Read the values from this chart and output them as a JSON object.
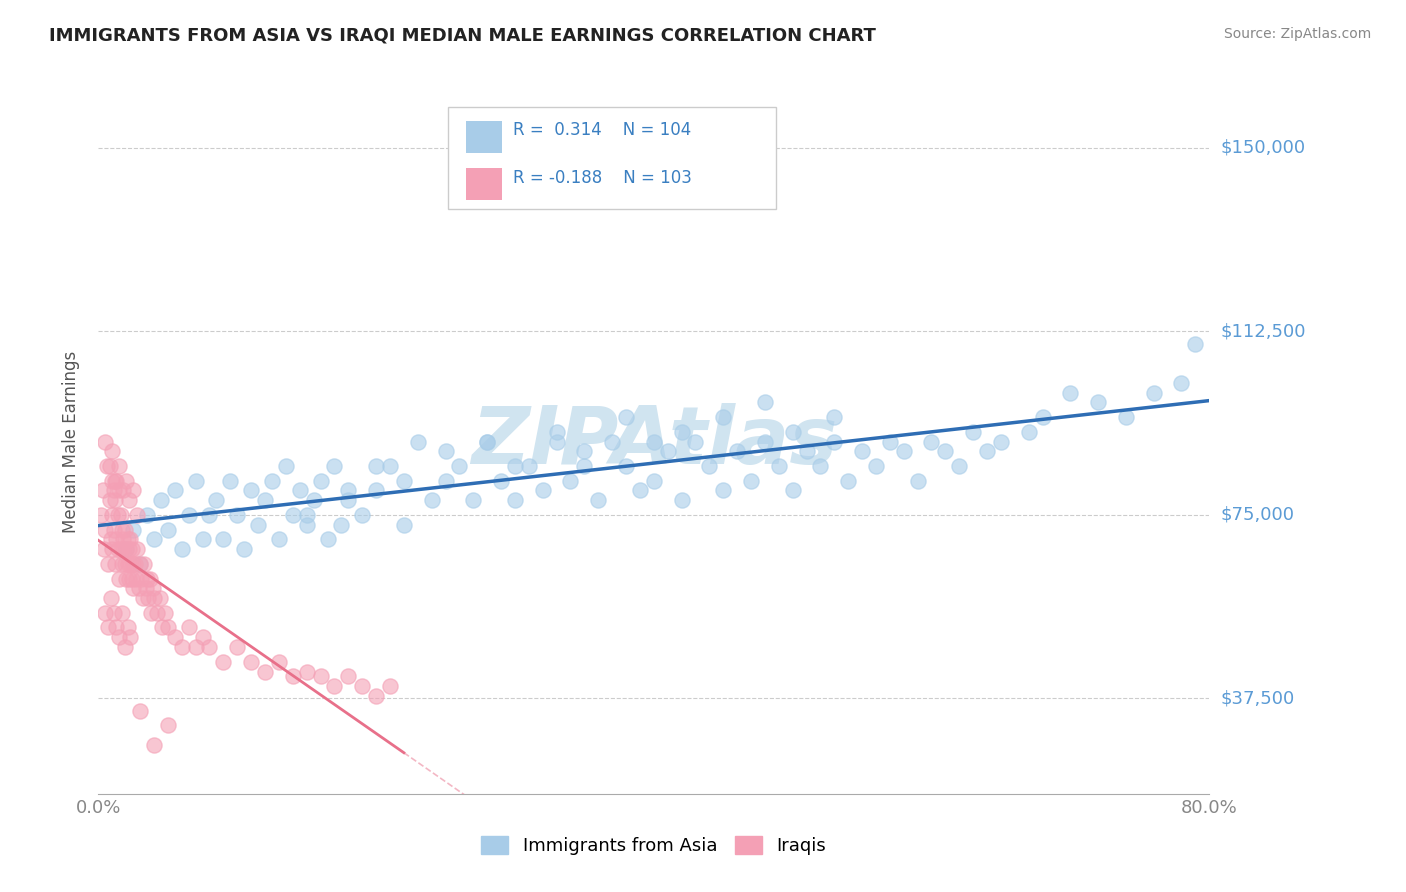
{
  "title": "IMMIGRANTS FROM ASIA VS IRAQI MEDIAN MALE EARNINGS CORRELATION CHART",
  "source": "Source: ZipAtlas.com",
  "ylabel": "Median Male Earnings",
  "xlim": [
    0.0,
    0.8
  ],
  "ylim": [
    18000,
    162000
  ],
  "yticks": [
    37500,
    75000,
    112500,
    150000
  ],
  "ytick_labels": [
    "$37,500",
    "$75,000",
    "$112,500",
    "$150,000"
  ],
  "xticks": [
    0.0,
    0.8
  ],
  "xtick_labels": [
    "0.0%",
    "80.0%"
  ],
  "r_asia": 0.314,
  "n_asia": 104,
  "r_iraq": -0.188,
  "n_iraq": 103,
  "color_asia": "#a8cce8",
  "color_iraq": "#f4a0b5",
  "color_line_asia": "#2e6db4",
  "color_line_iraq": "#e8708a",
  "watermark": "ZIPAtlas",
  "watermark_color": "#d0e4f0",
  "legend_r_color": "#3a7fc1",
  "legend_text_color": "#333333",
  "asia_x": [
    0.02,
    0.025,
    0.03,
    0.035,
    0.04,
    0.045,
    0.05,
    0.055,
    0.06,
    0.065,
    0.07,
    0.075,
    0.08,
    0.085,
    0.09,
    0.095,
    0.1,
    0.105,
    0.11,
    0.115,
    0.12,
    0.125,
    0.13,
    0.135,
    0.14,
    0.145,
    0.15,
    0.155,
    0.16,
    0.165,
    0.17,
    0.175,
    0.18,
    0.19,
    0.2,
    0.21,
    0.22,
    0.23,
    0.24,
    0.25,
    0.26,
    0.27,
    0.28,
    0.29,
    0.3,
    0.31,
    0.32,
    0.33,
    0.34,
    0.35,
    0.36,
    0.37,
    0.38,
    0.39,
    0.4,
    0.41,
    0.42,
    0.43,
    0.44,
    0.45,
    0.46,
    0.47,
    0.48,
    0.49,
    0.5,
    0.51,
    0.52,
    0.53,
    0.54,
    0.55,
    0.56,
    0.57,
    0.58,
    0.59,
    0.6,
    0.61,
    0.62,
    0.63,
    0.64,
    0.65,
    0.67,
    0.68,
    0.7,
    0.72,
    0.74,
    0.76,
    0.78,
    0.79,
    0.15,
    0.18,
    0.2,
    0.22,
    0.25,
    0.28,
    0.3,
    0.33,
    0.35,
    0.38,
    0.4,
    0.42,
    0.45,
    0.48,
    0.5,
    0.53
  ],
  "asia_y": [
    68000,
    72000,
    65000,
    75000,
    70000,
    78000,
    72000,
    80000,
    68000,
    75000,
    82000,
    70000,
    75000,
    78000,
    70000,
    82000,
    75000,
    68000,
    80000,
    73000,
    78000,
    82000,
    70000,
    85000,
    75000,
    80000,
    73000,
    78000,
    82000,
    70000,
    85000,
    73000,
    78000,
    75000,
    80000,
    85000,
    73000,
    90000,
    78000,
    82000,
    85000,
    78000,
    90000,
    82000,
    78000,
    85000,
    80000,
    90000,
    82000,
    85000,
    78000,
    90000,
    85000,
    80000,
    82000,
    88000,
    78000,
    90000,
    85000,
    80000,
    88000,
    82000,
    90000,
    85000,
    80000,
    88000,
    85000,
    90000,
    82000,
    88000,
    85000,
    90000,
    88000,
    82000,
    90000,
    88000,
    85000,
    92000,
    88000,
    90000,
    92000,
    95000,
    100000,
    98000,
    95000,
    100000,
    102000,
    110000,
    75000,
    80000,
    85000,
    82000,
    88000,
    90000,
    85000,
    92000,
    88000,
    95000,
    90000,
    92000,
    95000,
    98000,
    92000,
    95000
  ],
  "iraq_x": [
    0.002,
    0.003,
    0.004,
    0.005,
    0.006,
    0.007,
    0.008,
    0.009,
    0.01,
    0.01,
    0.01,
    0.011,
    0.011,
    0.012,
    0.012,
    0.013,
    0.013,
    0.014,
    0.014,
    0.015,
    0.015,
    0.016,
    0.016,
    0.017,
    0.017,
    0.018,
    0.018,
    0.019,
    0.019,
    0.02,
    0.02,
    0.021,
    0.021,
    0.022,
    0.022,
    0.023,
    0.023,
    0.024,
    0.024,
    0.025,
    0.025,
    0.026,
    0.027,
    0.028,
    0.029,
    0.03,
    0.031,
    0.032,
    0.033,
    0.034,
    0.035,
    0.036,
    0.037,
    0.038,
    0.039,
    0.04,
    0.042,
    0.044,
    0.046,
    0.048,
    0.05,
    0.055,
    0.06,
    0.065,
    0.07,
    0.075,
    0.08,
    0.09,
    0.1,
    0.11,
    0.12,
    0.13,
    0.14,
    0.15,
    0.16,
    0.17,
    0.18,
    0.19,
    0.2,
    0.21,
    0.005,
    0.008,
    0.01,
    0.012,
    0.015,
    0.018,
    0.02,
    0.022,
    0.025,
    0.028,
    0.005,
    0.007,
    0.009,
    0.011,
    0.013,
    0.015,
    0.017,
    0.019,
    0.021,
    0.023,
    0.03,
    0.04,
    0.05
  ],
  "iraq_y": [
    75000,
    80000,
    68000,
    72000,
    85000,
    65000,
    78000,
    70000,
    82000,
    75000,
    68000,
    80000,
    72000,
    78000,
    65000,
    82000,
    70000,
    75000,
    68000,
    80000,
    62000,
    75000,
    68000,
    72000,
    65000,
    70000,
    68000,
    65000,
    72000,
    68000,
    62000,
    70000,
    65000,
    68000,
    62000,
    65000,
    70000,
    62000,
    68000,
    65000,
    60000,
    65000,
    62000,
    68000,
    60000,
    65000,
    62000,
    58000,
    65000,
    60000,
    62000,
    58000,
    62000,
    55000,
    60000,
    58000,
    55000,
    58000,
    52000,
    55000,
    52000,
    50000,
    48000,
    52000,
    48000,
    50000,
    48000,
    45000,
    48000,
    45000,
    43000,
    45000,
    42000,
    43000,
    42000,
    40000,
    42000,
    40000,
    38000,
    40000,
    90000,
    85000,
    88000,
    82000,
    85000,
    80000,
    82000,
    78000,
    80000,
    75000,
    55000,
    52000,
    58000,
    55000,
    52000,
    50000,
    55000,
    48000,
    52000,
    50000,
    35000,
    28000,
    32000
  ]
}
